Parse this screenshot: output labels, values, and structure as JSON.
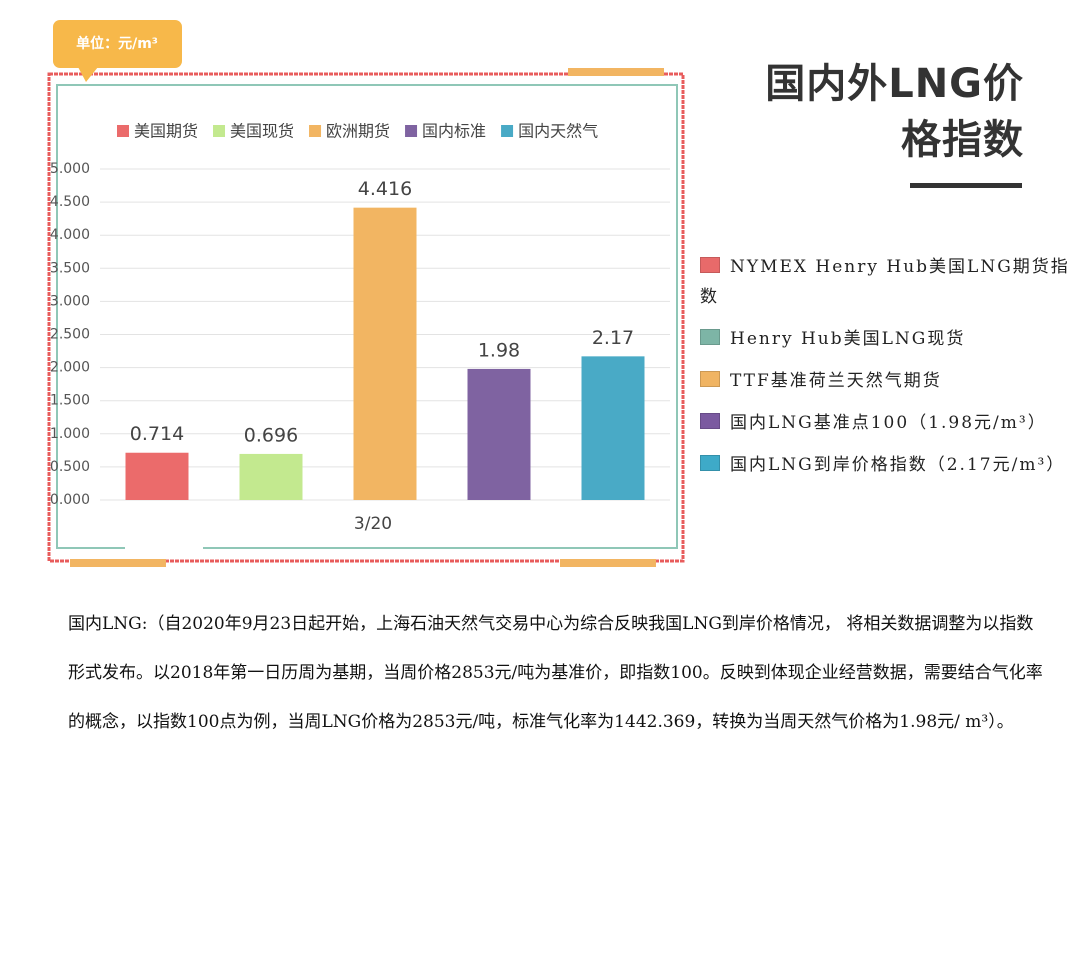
{
  "title": "国内外LNG价格指数",
  "chart_data": {
    "type": "bar",
    "unit_label": "单位：元/m³",
    "categories": [
      "3/20"
    ],
    "series": [
      {
        "name": "美国期货",
        "color": "#eb6b6b",
        "values": [
          0.714
        ]
      },
      {
        "name": "美国现货",
        "color": "#c3e98f",
        "values": [
          0.696
        ]
      },
      {
        "name": "欧洲期货",
        "color": "#f2b562",
        "values": [
          4.416
        ]
      },
      {
        "name": "国内标准",
        "color": "#7f63a1",
        "values": [
          1.98
        ]
      },
      {
        "name": "国内天然气",
        "color": "#49aac6",
        "values": [
          2.17
        ]
      }
    ],
    "ylim": [
      0,
      5
    ],
    "yticks": [
      {
        "value": 0,
        "label": "0.000"
      },
      {
        "value": 0.5,
        "label": "0.500"
      },
      {
        "value": 1,
        "label": "1.000"
      },
      {
        "value": 1.5,
        "label": "1.500"
      },
      {
        "value": 2,
        "label": "2.000"
      },
      {
        "value": 2.5,
        "label": "2.500"
      },
      {
        "value": 3,
        "label": "3.000"
      },
      {
        "value": 3.5,
        "label": "3.500"
      },
      {
        "value": 4,
        "label": "4.000"
      },
      {
        "value": 4.5,
        "label": "4.500"
      },
      {
        "value": 5,
        "label": "5.000"
      }
    ],
    "grid": true
  },
  "legend_notes": [
    {
      "label": "NYMEX Henry Hub美国LNG期货指数",
      "color": "#e86a6a"
    },
    {
      "label": "Henry Hub美国LNG现货",
      "color": "#7db5a6"
    },
    {
      "label": "TTF基准荷兰天然气期货",
      "color": "#f0b463"
    },
    {
      "label": "国内LNG基准点100（1.98元/m³）",
      "color": "#7b5aa0"
    },
    {
      "label": "国内LNG到岸价格指数（2.17元/m³）",
      "color": "#3eaac8"
    }
  ],
  "note": "国内LNG:（自2020年9月23日起开始，上海石油天然气交易中心为综合反映我国LNG到岸价格情况， 将相关数据调整为以指数形式发布。以2018年第一日历周为基期，当周价格2853元/吨为基准价，即指数100。反映到体现企业经营数据，需要结合气化率的概念，以指数100点为例，当周LNG价格为2853元/吨，标准气化率为1442.369，转换为当周天然气价格为1.98元/ m³）。"
}
